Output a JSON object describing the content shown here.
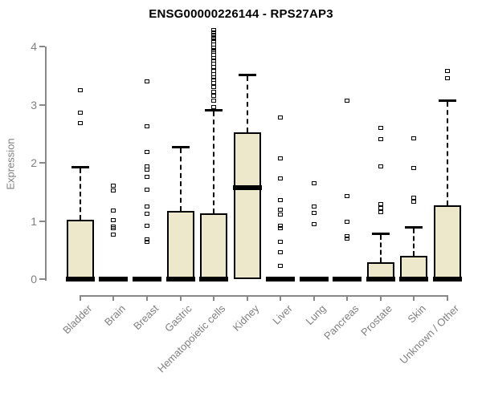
{
  "page_title": "ENSG00000226144 - RPS27AP3",
  "chart_data": {
    "type": "boxplot",
    "title": "ENSG00000226144 - RPS27AP3",
    "xlabel": "",
    "ylabel": "Expression",
    "ylim": [
      0,
      4.3
    ],
    "yticks": [
      0,
      1,
      2,
      3,
      4
    ],
    "grid": false,
    "legend": "none",
    "categories": [
      "Bladder",
      "Brain",
      "Breast",
      "Gastric",
      "Hematopoietic cells",
      "Kidney",
      "Liver",
      "Lung",
      "Pancreas",
      "Prostate",
      "Skin",
      "Unknown / Other"
    ],
    "boxes": [
      {
        "category": "Bladder",
        "q1": 0,
        "median": 0,
        "q3": 1.02,
        "whisker_low": 0,
        "whisker_high": 1.93,
        "outliers": [
          3.24,
          2.86,
          2.68
        ]
      },
      {
        "category": "Brain",
        "q1": 0,
        "median": 0,
        "q3": 0,
        "whisker_low": 0,
        "whisker_high": 0,
        "outliers": [
          1.61,
          1.52,
          1.18,
          1.01,
          0.9,
          0.87,
          0.76
        ]
      },
      {
        "category": "Breast",
        "q1": 0,
        "median": 0,
        "q3": 0,
        "whisker_low": 0,
        "whisker_high": 0,
        "outliers": [
          3.4,
          2.62,
          2.18,
          1.93,
          1.88,
          1.75,
          1.54,
          1.24,
          1.12,
          0.92,
          0.68,
          0.64
        ]
      },
      {
        "category": "Gastric",
        "q1": 0,
        "median": 0,
        "q3": 1.18,
        "whisker_low": 0,
        "whisker_high": 2.28,
        "outliers": []
      },
      {
        "category": "Hematopoietic cells",
        "q1": 0,
        "median": 0,
        "q3": 1.13,
        "whisker_low": 0,
        "whisker_high": 2.92,
        "outliers": [
          4.28,
          4.24,
          4.2,
          4.16,
          4.12,
          4.08,
          4.03,
          3.98,
          3.94,
          3.9,
          3.85,
          3.8,
          3.75,
          3.7,
          3.64,
          3.58,
          3.52,
          3.47,
          3.42,
          3.37,
          3.3,
          3.22,
          3.15,
          3.06,
          2.96
        ]
      },
      {
        "category": "Kidney",
        "q1": 0,
        "median": 1.58,
        "q3": 2.53,
        "whisker_low": 0,
        "whisker_high": 3.52,
        "outliers": []
      },
      {
        "category": "Liver",
        "q1": 0,
        "median": 0,
        "q3": 0,
        "whisker_low": 0,
        "whisker_high": 0,
        "outliers": [
          2.78,
          2.07,
          1.73,
          1.36,
          1.19,
          1.11,
          0.91,
          0.87,
          0.64,
          0.46,
          0.22
        ]
      },
      {
        "category": "Lung",
        "q1": 0,
        "median": 0,
        "q3": 0,
        "whisker_low": 0,
        "whisker_high": 0,
        "outliers": [
          1.65,
          1.24,
          1.13,
          0.94
        ]
      },
      {
        "category": "Pancreas",
        "q1": 0,
        "median": 0,
        "q3": 0,
        "whisker_low": 0,
        "whisker_high": 0,
        "outliers": [
          3.06,
          1.42,
          0.99,
          0.73,
          0.69
        ]
      },
      {
        "category": "Prostate",
        "q1": 0,
        "median": 0,
        "q3": 0.29,
        "whisker_low": 0,
        "whisker_high": 0.79,
        "outliers": [
          2.6,
          2.41,
          1.93,
          1.29,
          1.22,
          1.15
        ]
      },
      {
        "category": "Skin",
        "q1": 0,
        "median": 0,
        "q3": 0.4,
        "whisker_low": 0,
        "whisker_high": 0.9,
        "outliers": [
          2.42,
          1.91,
          1.4,
          1.33
        ]
      },
      {
        "category": "Unknown / Other",
        "q1": 0,
        "median": 0,
        "q3": 1.27,
        "whisker_low": 0,
        "whisker_high": 3.08,
        "outliers": [
          3.58,
          3.45
        ]
      }
    ],
    "style": {
      "box_fill": "#ede7cc",
      "box_border": "#000000",
      "median_color": "#000000",
      "whisker_color": "#000000",
      "outlier_color": "#000000",
      "axis_color": "#888888",
      "tick_text_color": "#7f7f7f",
      "title_color": "#000000",
      "background": "#ffffff"
    }
  }
}
